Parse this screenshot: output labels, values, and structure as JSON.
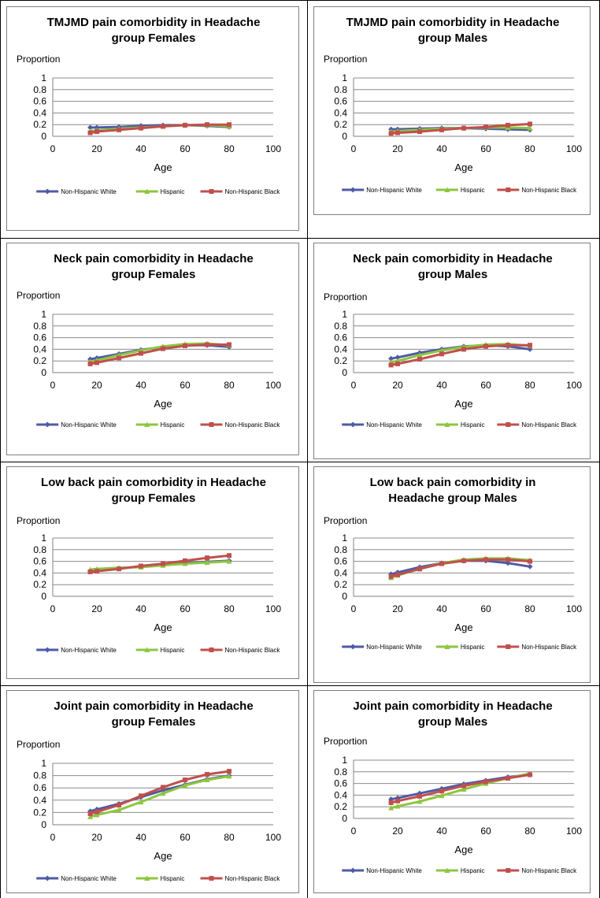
{
  "x_axis_label": "Age",
  "y_axis_label": "Proportion",
  "x_ticks": [
    0,
    20,
    40,
    60,
    80,
    100
  ],
  "y_ticks": [
    0,
    0.2,
    0.4,
    0.6,
    0.8,
    1
  ],
  "series_colors": {
    "Non-Hispanic White": "#4f5aa5",
    "Hispanic": "#8dc63f",
    "Non-Hispanic Black": "#c0504d"
  },
  "chart_data": [
    {
      "type": "line",
      "title": [
        "TMJMD pain comorbidity in Headache",
        "group Females"
      ],
      "xlabel": "Age",
      "ylabel": "Proportion",
      "xlim": [
        0,
        100
      ],
      "ylim": [
        0,
        1
      ],
      "grid": true,
      "legend": "bottom",
      "x": [
        17,
        20,
        30,
        40,
        50,
        60,
        70,
        80
      ],
      "series": [
        {
          "name": "Non-Hispanic White",
          "values": [
            0.15,
            0.15,
            0.16,
            0.18,
            0.19,
            0.19,
            0.18,
            0.16
          ]
        },
        {
          "name": "Hispanic",
          "values": [
            0.09,
            0.1,
            0.13,
            0.15,
            0.17,
            0.19,
            0.19,
            0.17
          ]
        },
        {
          "name": "Non-Hispanic Black",
          "values": [
            0.06,
            0.08,
            0.11,
            0.14,
            0.17,
            0.19,
            0.2,
            0.2
          ]
        }
      ]
    },
    {
      "type": "line",
      "title": [
        "TMJMD pain comorbidity in Headache",
        "group Males"
      ],
      "xlabel": "Age",
      "ylabel": "Proportion",
      "xlim": [
        0,
        100
      ],
      "ylim": [
        0,
        1
      ],
      "grid": true,
      "legend": "bottom",
      "x": [
        17,
        20,
        30,
        40,
        50,
        60,
        70,
        80
      ],
      "series": [
        {
          "name": "Non-Hispanic White",
          "values": [
            0.12,
            0.12,
            0.13,
            0.14,
            0.14,
            0.13,
            0.12,
            0.11
          ]
        },
        {
          "name": "Hispanic",
          "values": [
            0.08,
            0.09,
            0.11,
            0.13,
            0.14,
            0.15,
            0.15,
            0.14
          ]
        },
        {
          "name": "Non-Hispanic Black",
          "values": [
            0.05,
            0.06,
            0.08,
            0.11,
            0.14,
            0.16,
            0.19,
            0.21
          ]
        }
      ]
    },
    {
      "type": "line",
      "title": [
        "Neck pain comorbidity in Headache",
        "group Females"
      ],
      "xlabel": "Age",
      "ylabel": "Proportion",
      "xlim": [
        0,
        100
      ],
      "ylim": [
        0,
        1
      ],
      "grid": true,
      "legend": "bottom",
      "x": [
        17,
        20,
        30,
        40,
        50,
        60,
        70,
        80
      ],
      "series": [
        {
          "name": "Non-Hispanic White",
          "values": [
            0.23,
            0.25,
            0.32,
            0.39,
            0.44,
            0.47,
            0.47,
            0.44
          ]
        },
        {
          "name": "Hispanic",
          "values": [
            0.19,
            0.21,
            0.3,
            0.38,
            0.45,
            0.49,
            0.5,
            0.47
          ]
        },
        {
          "name": "Non-Hispanic Black",
          "values": [
            0.15,
            0.17,
            0.25,
            0.33,
            0.41,
            0.46,
            0.48,
            0.48
          ]
        }
      ]
    },
    {
      "type": "line",
      "title": [
        "Neck pain comorbidity in Headache",
        "group Males"
      ],
      "xlabel": "Age",
      "ylabel": "Proportion",
      "xlim": [
        0,
        100
      ],
      "ylim": [
        0,
        1
      ],
      "grid": true,
      "legend": "bottom",
      "x": [
        17,
        20,
        30,
        40,
        50,
        60,
        70,
        80
      ],
      "series": [
        {
          "name": "Non-Hispanic White",
          "values": [
            0.24,
            0.26,
            0.34,
            0.4,
            0.45,
            0.47,
            0.45,
            0.4
          ]
        },
        {
          "name": "Hispanic",
          "values": [
            0.18,
            0.2,
            0.3,
            0.38,
            0.44,
            0.48,
            0.49,
            0.46
          ]
        },
        {
          "name": "Non-Hispanic Black",
          "values": [
            0.13,
            0.15,
            0.23,
            0.32,
            0.4,
            0.45,
            0.47,
            0.47
          ]
        }
      ]
    },
    {
      "type": "line",
      "title": [
        "Low back pain comorbidity in Headache",
        "group Females"
      ],
      "xlabel": "Age",
      "ylabel": "Proportion",
      "xlim": [
        0,
        100
      ],
      "ylim": [
        0,
        1
      ],
      "grid": true,
      "legend": "bottom",
      "x": [
        17,
        20,
        30,
        40,
        50,
        60,
        70,
        80
      ],
      "series": [
        {
          "name": "Non-Hispanic White",
          "values": [
            0.44,
            0.45,
            0.48,
            0.51,
            0.54,
            0.57,
            0.59,
            0.61
          ]
        },
        {
          "name": "Hispanic",
          "values": [
            0.46,
            0.47,
            0.49,
            0.5,
            0.53,
            0.56,
            0.58,
            0.6
          ]
        },
        {
          "name": "Non-Hispanic Black",
          "values": [
            0.42,
            0.43,
            0.47,
            0.52,
            0.56,
            0.61,
            0.66,
            0.7
          ]
        }
      ]
    },
    {
      "type": "line",
      "title": [
        "Low back pain comorbidity in",
        "Headache group Males"
      ],
      "xlabel": "Age",
      "ylabel": "Proportion",
      "xlim": [
        0,
        100
      ],
      "ylim": [
        0,
        1
      ],
      "grid": true,
      "legend": "bottom",
      "x": [
        17,
        20,
        30,
        40,
        50,
        60,
        70,
        80
      ],
      "series": [
        {
          "name": "Non-Hispanic White",
          "values": [
            0.38,
            0.41,
            0.5,
            0.57,
            0.61,
            0.61,
            0.57,
            0.51
          ]
        },
        {
          "name": "Hispanic",
          "values": [
            0.32,
            0.36,
            0.47,
            0.57,
            0.63,
            0.65,
            0.65,
            0.62
          ]
        },
        {
          "name": "Non-Hispanic Black",
          "values": [
            0.34,
            0.37,
            0.47,
            0.56,
            0.61,
            0.63,
            0.63,
            0.6
          ]
        }
      ]
    },
    {
      "type": "line",
      "title": [
        "Joint pain comorbidity in Headache",
        "group Females"
      ],
      "xlabel": "Age",
      "ylabel": "Proportion",
      "xlim": [
        0,
        100
      ],
      "ylim": [
        0,
        1
      ],
      "grid": true,
      "legend": "bottom",
      "x": [
        17,
        20,
        30,
        40,
        50,
        60,
        70,
        80
      ],
      "series": [
        {
          "name": "Non-Hispanic White",
          "values": [
            0.22,
            0.25,
            0.34,
            0.45,
            0.56,
            0.65,
            0.74,
            0.8
          ]
        },
        {
          "name": "Hispanic",
          "values": [
            0.13,
            0.16,
            0.24,
            0.37,
            0.51,
            0.64,
            0.73,
            0.79
          ]
        },
        {
          "name": "Non-Hispanic Black",
          "values": [
            0.18,
            0.21,
            0.32,
            0.47,
            0.61,
            0.73,
            0.82,
            0.87
          ]
        }
      ]
    },
    {
      "type": "line",
      "title": [
        "Joint pain comorbidity in Headache",
        "group Males"
      ],
      "xlabel": "Age",
      "ylabel": "Proportion",
      "xlim": [
        0,
        100
      ],
      "ylim": [
        0,
        1
      ],
      "grid": true,
      "legend": "bottom",
      "x": [
        17,
        20,
        30,
        40,
        50,
        60,
        70,
        80
      ],
      "series": [
        {
          "name": "Non-Hispanic White",
          "values": [
            0.33,
            0.35,
            0.43,
            0.51,
            0.59,
            0.65,
            0.71,
            0.75
          ]
        },
        {
          "name": "Hispanic",
          "values": [
            0.18,
            0.21,
            0.29,
            0.39,
            0.5,
            0.6,
            0.69,
            0.77
          ]
        },
        {
          "name": "Non-Hispanic Black",
          "values": [
            0.27,
            0.3,
            0.38,
            0.47,
            0.56,
            0.63,
            0.69,
            0.75
          ]
        }
      ]
    }
  ]
}
